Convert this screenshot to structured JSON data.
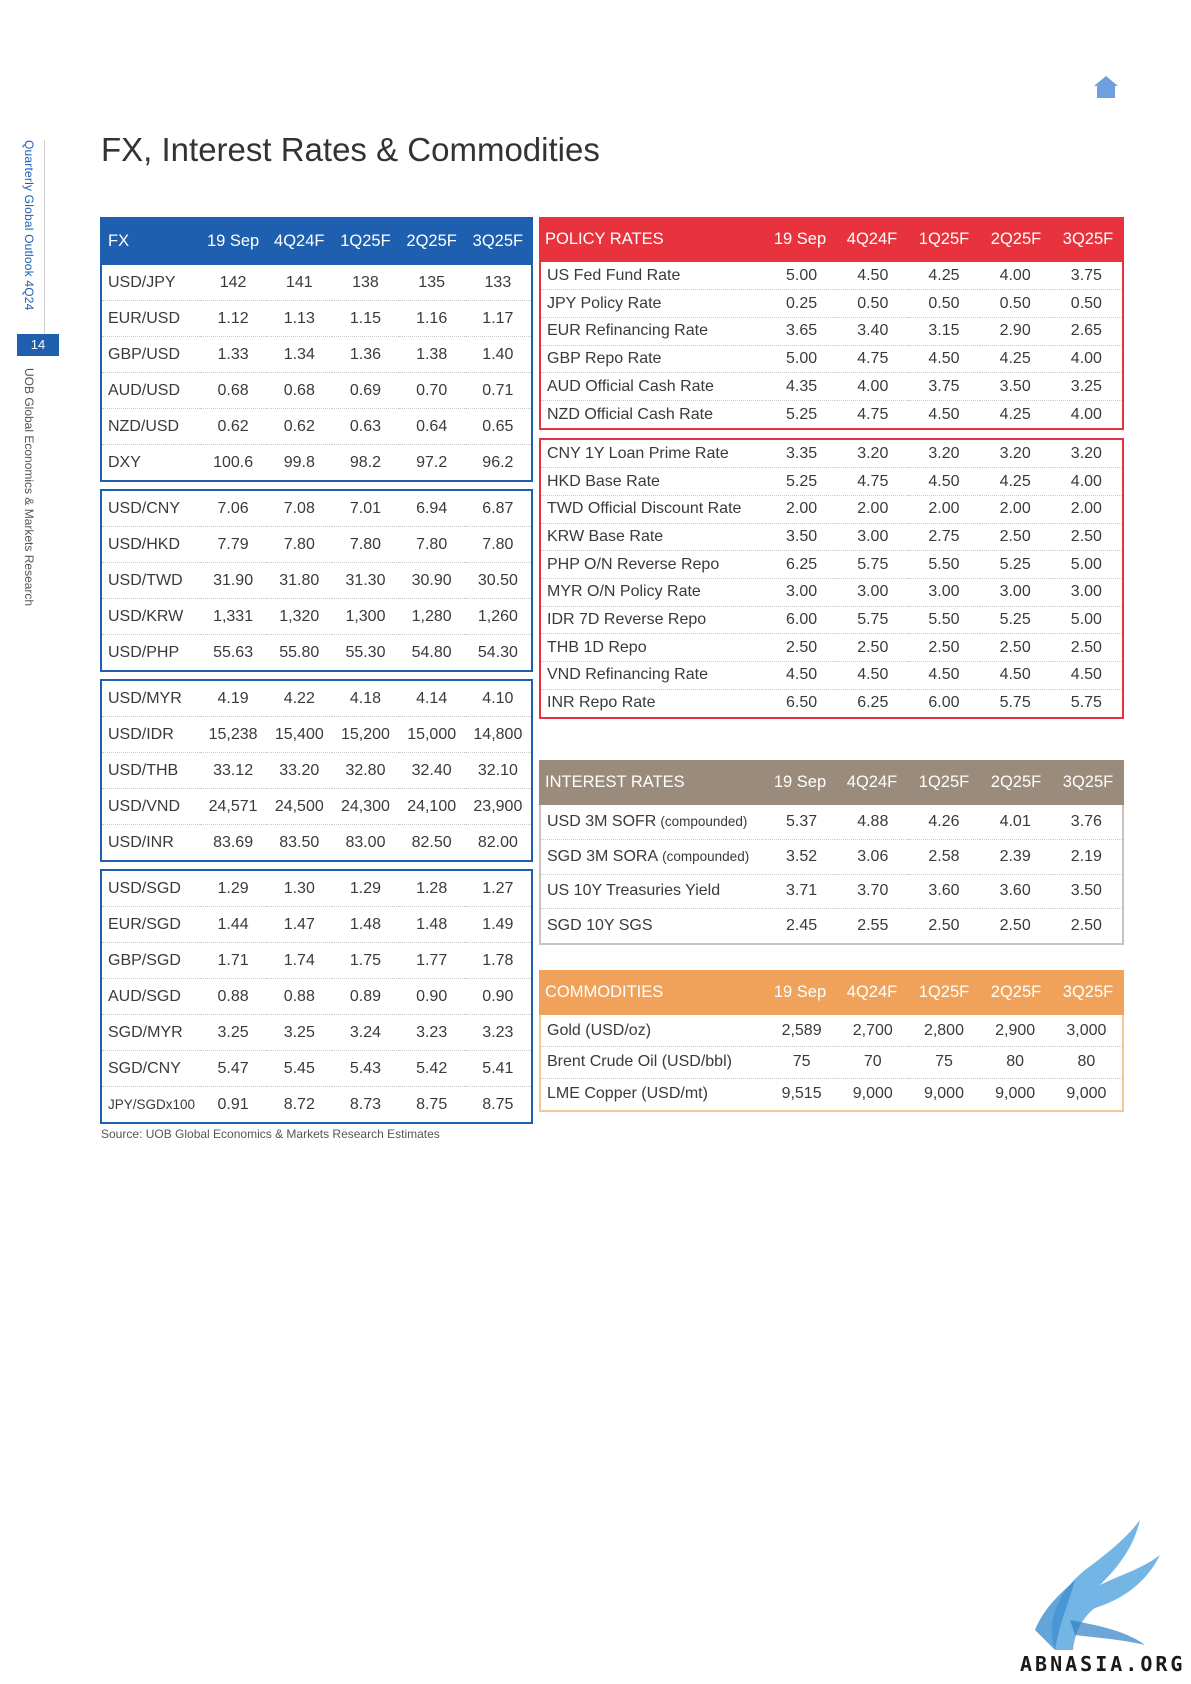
{
  "sidebar": {
    "publication": "Quarterly Global Outlook 4Q24",
    "page_number": "14",
    "department": "UOB Global Economics & Markets Research"
  },
  "title": "FX, Interest Rates & Commodities",
  "columns": [
    "19 Sep",
    "4Q24F",
    "1Q25F",
    "2Q25F",
    "3Q25F"
  ],
  "fx": {
    "header": "FX",
    "groups": [
      [
        {
          "label": "USD/JPY",
          "values": [
            "142",
            "141",
            "138",
            "135",
            "133"
          ]
        },
        {
          "label": "EUR/USD",
          "values": [
            "1.12",
            "1.13",
            "1.15",
            "1.16",
            "1.17"
          ]
        },
        {
          "label": "GBP/USD",
          "values": [
            "1.33",
            "1.34",
            "1.36",
            "1.38",
            "1.40"
          ]
        },
        {
          "label": "AUD/USD",
          "values": [
            "0.68",
            "0.68",
            "0.69",
            "0.70",
            "0.71"
          ]
        },
        {
          "label": "NZD/USD",
          "values": [
            "0.62",
            "0.62",
            "0.63",
            "0.64",
            "0.65"
          ]
        },
        {
          "label": "DXY",
          "values": [
            "100.6",
            "99.8",
            "98.2",
            "97.2",
            "96.2"
          ]
        }
      ],
      [
        {
          "label": "USD/CNY",
          "values": [
            "7.06",
            "7.08",
            "7.01",
            "6.94",
            "6.87"
          ]
        },
        {
          "label": "USD/HKD",
          "values": [
            "7.79",
            "7.80",
            "7.80",
            "7.80",
            "7.80"
          ]
        },
        {
          "label": "USD/TWD",
          "values": [
            "31.90",
            "31.80",
            "31.30",
            "30.90",
            "30.50"
          ]
        },
        {
          "label": "USD/KRW",
          "values": [
            "1,331",
            "1,320",
            "1,300",
            "1,280",
            "1,260"
          ]
        },
        {
          "label": "USD/PHP",
          "values": [
            "55.63",
            "55.80",
            "55.30",
            "54.80",
            "54.30"
          ]
        }
      ],
      [
        {
          "label": "USD/MYR",
          "values": [
            "4.19",
            "4.22",
            "4.18",
            "4.14",
            "4.10"
          ]
        },
        {
          "label": "USD/IDR",
          "values": [
            "15,238",
            "15,400",
            "15,200",
            "15,000",
            "14,800"
          ]
        },
        {
          "label": "USD/THB",
          "values": [
            "33.12",
            "33.20",
            "32.80",
            "32.40",
            "32.10"
          ]
        },
        {
          "label": "USD/VND",
          "values": [
            "24,571",
            "24,500",
            "24,300",
            "24,100",
            "23,900"
          ]
        },
        {
          "label": "USD/INR",
          "values": [
            "83.69",
            "83.50",
            "83.00",
            "82.50",
            "82.00"
          ]
        }
      ],
      [
        {
          "label": "USD/SGD",
          "values": [
            "1.29",
            "1.30",
            "1.29",
            "1.28",
            "1.27"
          ]
        },
        {
          "label": "EUR/SGD",
          "values": [
            "1.44",
            "1.47",
            "1.48",
            "1.48",
            "1.49"
          ]
        },
        {
          "label": "GBP/SGD",
          "values": [
            "1.71",
            "1.74",
            "1.75",
            "1.77",
            "1.78"
          ]
        },
        {
          "label": "AUD/SGD",
          "values": [
            "0.88",
            "0.88",
            "0.89",
            "0.90",
            "0.90"
          ]
        },
        {
          "label": "SGD/MYR",
          "values": [
            "3.25",
            "3.25",
            "3.24",
            "3.23",
            "3.23"
          ]
        },
        {
          "label": "SGD/CNY",
          "values": [
            "5.47",
            "5.45",
            "5.43",
            "5.42",
            "5.41"
          ]
        },
        {
          "label": "JPY/SGDx100",
          "values": [
            "0.91",
            "8.72",
            "8.73",
            "8.75",
            "8.75"
          ],
          "small": true
        }
      ]
    ]
  },
  "policy": {
    "header": "POLICY RATES",
    "color": "#e8333e",
    "groups": [
      [
        {
          "label": "US Fed Fund Rate",
          "values": [
            "5.00",
            "4.50",
            "4.25",
            "4.00",
            "3.75"
          ]
        },
        {
          "label": "JPY Policy Rate",
          "values": [
            "0.25",
            "0.50",
            "0.50",
            "0.50",
            "0.50"
          ]
        },
        {
          "label": "EUR Refinancing Rate",
          "values": [
            "3.65",
            "3.40",
            "3.15",
            "2.90",
            "2.65"
          ]
        },
        {
          "label": "GBP Repo Rate",
          "values": [
            "5.00",
            "4.75",
            "4.50",
            "4.25",
            "4.00"
          ]
        },
        {
          "label": "AUD Official Cash Rate",
          "values": [
            "4.35",
            "4.00",
            "3.75",
            "3.50",
            "3.25"
          ]
        },
        {
          "label": "NZD Official Cash Rate",
          "values": [
            "5.25",
            "4.75",
            "4.50",
            "4.25",
            "4.00"
          ]
        }
      ],
      [
        {
          "label": "CNY 1Y Loan Prime Rate",
          "values": [
            "3.35",
            "3.20",
            "3.20",
            "3.20",
            "3.20"
          ]
        },
        {
          "label": "HKD Base Rate",
          "values": [
            "5.25",
            "4.75",
            "4.50",
            "4.25",
            "4.00"
          ]
        },
        {
          "label": "TWD Official Discount Rate",
          "values": [
            "2.00",
            "2.00",
            "2.00",
            "2.00",
            "2.00"
          ]
        },
        {
          "label": "KRW Base Rate",
          "values": [
            "3.50",
            "3.00",
            "2.75",
            "2.50",
            "2.50"
          ]
        },
        {
          "label": "PHP O/N Reverse Repo",
          "values": [
            "6.25",
            "5.75",
            "5.50",
            "5.25",
            "5.00"
          ]
        },
        {
          "label": "MYR O/N Policy Rate",
          "values": [
            "3.00",
            "3.00",
            "3.00",
            "3.00",
            "3.00"
          ]
        },
        {
          "label": "IDR 7D Reverse Repo",
          "values": [
            "6.00",
            "5.75",
            "5.50",
            "5.25",
            "5.00"
          ]
        },
        {
          "label": "THB 1D Repo",
          "values": [
            "2.50",
            "2.50",
            "2.50",
            "2.50",
            "2.50"
          ]
        },
        {
          "label": "VND Refinancing Rate",
          "values": [
            "4.50",
            "4.50",
            "4.50",
            "4.50",
            "4.50"
          ]
        },
        {
          "label": "INR Repo Rate",
          "values": [
            "6.50",
            "6.25",
            "6.00",
            "5.75",
            "5.75"
          ]
        }
      ]
    ]
  },
  "interest": {
    "header": "INTEREST RATES",
    "color": "#9b8b7b",
    "rows": [
      {
        "label": "USD 3M SOFR",
        "suffix": "(compounded)",
        "values": [
          "5.37",
          "4.88",
          "4.26",
          "4.01",
          "3.76"
        ]
      },
      {
        "label": "SGD 3M SORA",
        "suffix": "(compounded)",
        "values": [
          "3.52",
          "3.06",
          "2.58",
          "2.39",
          "2.19"
        ]
      },
      {
        "label": "US 10Y Treasuries Yield",
        "values": [
          "3.71",
          "3.70",
          "3.60",
          "3.60",
          "3.50"
        ]
      },
      {
        "label": "SGD 10Y SGS",
        "values": [
          "2.45",
          "2.55",
          "2.50",
          "2.50",
          "2.50"
        ]
      }
    ]
  },
  "commodities": {
    "header": "COMMODITIES",
    "color": "#f0a25a",
    "rows": [
      {
        "label": "Gold (USD/oz)",
        "values": [
          "2,589",
          "2,700",
          "2,800",
          "2,900",
          "3,000"
        ]
      },
      {
        "label": "Brent Crude Oil (USD/bbl)",
        "values": [
          "75",
          "70",
          "75",
          "80",
          "80"
        ]
      },
      {
        "label": "LME Copper (USD/mt)",
        "values": [
          "9,515",
          "9,000",
          "9,000",
          "9,000",
          "9,000"
        ]
      }
    ]
  },
  "source": "Source: UOB Global Economics & Markets Research Estimates",
  "watermark": "ABNASIA.ORG",
  "icons": {
    "home": "home-icon",
    "logo": "eagle-logo"
  },
  "colors": {
    "fx_blue": "#1f5fb0",
    "policy_red": "#e8333e",
    "interest_taupe": "#9b8b7b",
    "commodities_orange": "#f0a25a"
  }
}
